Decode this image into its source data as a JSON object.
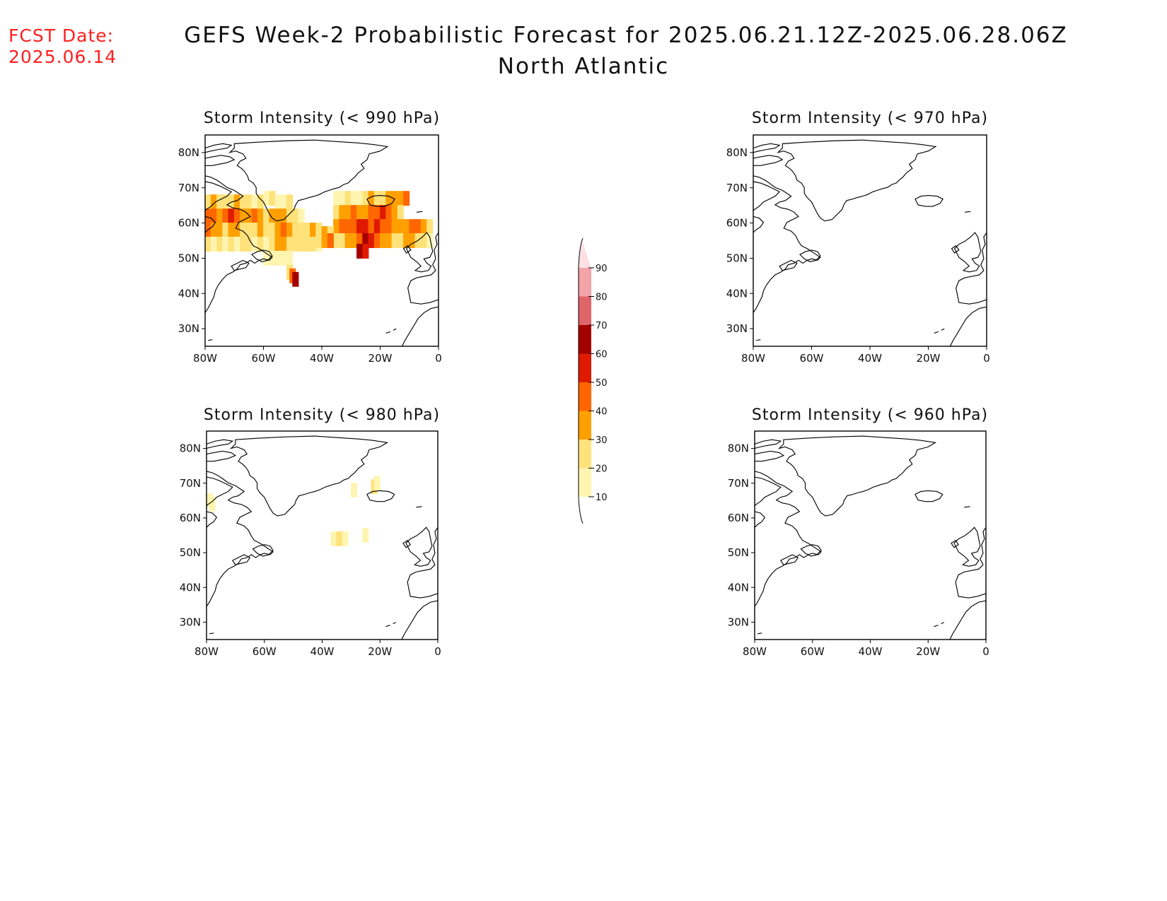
{
  "header": {
    "fcst_label": "FCST Date:",
    "fcst_date": "2025.06.14",
    "title": "GEFS Week-2 Probabilistic Forecast for 2025.06.21.12Z-2025.06.28.06Z",
    "subtitle": "North Atlantic"
  },
  "axes": {
    "lon_ticks": [
      "80W",
      "60W",
      "40W",
      "20W",
      "0"
    ],
    "lat_ticks": [
      "80N",
      "70N",
      "60N",
      "50N",
      "40N",
      "30N"
    ]
  },
  "panels": [
    {
      "title": "Storm Intensity (< 990 hPa)"
    },
    {
      "title": "Storm Intensity (< 970 hPa)"
    },
    {
      "title": "Storm Intensity (< 980 hPa)"
    },
    {
      "title": "Storm Intensity (< 960 hPa)"
    }
  ],
  "colorbar": {
    "labels": [
      "90",
      "80",
      "70",
      "60",
      "50",
      "40",
      "30",
      "20",
      "10"
    ],
    "colors": [
      "#fde0e4",
      "#f4a4a8",
      "#e0656a",
      "#a50000",
      "#e01a00",
      "#ff6600",
      "#ffa000",
      "#ffe27a",
      "#fff5b0"
    ]
  },
  "chart_data": [
    {
      "type": "heatmap",
      "title": "Storm Intensity (< 990 hPa)",
      "xlim": [
        -80,
        0
      ],
      "ylim": [
        25,
        85
      ],
      "units": "probability (%)",
      "cells": [
        [
          -79,
          66,
          20
        ],
        [
          -77,
          66,
          30
        ],
        [
          -75,
          66,
          20
        ],
        [
          -73,
          66,
          20
        ],
        [
          -71,
          66,
          20
        ],
        [
          -69,
          66,
          30
        ],
        [
          -67,
          66,
          20
        ],
        [
          -65,
          66,
          20
        ],
        [
          -63,
          66,
          10
        ],
        [
          -61,
          66,
          20
        ],
        [
          -59,
          67,
          10
        ],
        [
          -57,
          67,
          20
        ],
        [
          -55,
          66,
          10
        ],
        [
          -53,
          66,
          10
        ],
        [
          -51,
          66,
          20
        ],
        [
          -79,
          62,
          40
        ],
        [
          -77,
          62,
          40
        ],
        [
          -75,
          62,
          30
        ],
        [
          -73,
          62,
          40
        ],
        [
          -71,
          62,
          50
        ],
        [
          -69,
          62,
          40
        ],
        [
          -67,
          62,
          30
        ],
        [
          -65,
          62,
          30
        ],
        [
          -63,
          62,
          40
        ],
        [
          -61,
          62,
          30
        ],
        [
          -59,
          62,
          20
        ],
        [
          -57,
          62,
          30
        ],
        [
          -55,
          62,
          30
        ],
        [
          -53,
          62,
          30
        ],
        [
          -51,
          62,
          20
        ],
        [
          -49,
          62,
          20
        ],
        [
          -47,
          62,
          10
        ],
        [
          -79,
          58,
          40
        ],
        [
          -77,
          58,
          30
        ],
        [
          -75,
          58,
          30
        ],
        [
          -73,
          58,
          20
        ],
        [
          -71,
          58,
          30
        ],
        [
          -69,
          58,
          30
        ],
        [
          -67,
          58,
          20
        ],
        [
          -65,
          58,
          20
        ],
        [
          -63,
          58,
          20
        ],
        [
          -61,
          58,
          30
        ],
        [
          -59,
          58,
          20
        ],
        [
          -57,
          58,
          20
        ],
        [
          -55,
          58,
          30
        ],
        [
          -53,
          58,
          40
        ],
        [
          -51,
          58,
          30
        ],
        [
          -49,
          58,
          20
        ],
        [
          -47,
          58,
          20
        ],
        [
          -45,
          58,
          20
        ],
        [
          -43,
          58,
          30
        ],
        [
          -41,
          58,
          20
        ],
        [
          -79,
          54,
          20
        ],
        [
          -77,
          54,
          10
        ],
        [
          -75,
          54,
          20
        ],
        [
          -73,
          54,
          10
        ],
        [
          -71,
          54,
          20
        ],
        [
          -69,
          54,
          10
        ],
        [
          -67,
          54,
          20
        ],
        [
          -65,
          54,
          20
        ],
        [
          -63,
          54,
          10
        ],
        [
          -61,
          54,
          20
        ],
        [
          -59,
          54,
          10
        ],
        [
          -57,
          54,
          20
        ],
        [
          -55,
          54,
          30
        ],
        [
          -53,
          54,
          30
        ],
        [
          -51,
          54,
          20
        ],
        [
          -49,
          54,
          20
        ],
        [
          -47,
          54,
          20
        ],
        [
          -45,
          54,
          20
        ],
        [
          -43,
          54,
          20
        ],
        [
          -41,
          54,
          10
        ],
        [
          -59,
          50,
          10
        ],
        [
          -57,
          50,
          10
        ],
        [
          -55,
          50,
          10
        ],
        [
          -53,
          50,
          10
        ],
        [
          -51,
          50,
          10
        ],
        [
          -51,
          46,
          20
        ],
        [
          -50,
          45,
          40
        ],
        [
          -49,
          44,
          60
        ],
        [
          -35,
          67,
          10
        ],
        [
          -33,
          67,
          10
        ],
        [
          -31,
          67,
          20
        ],
        [
          -29,
          67,
          10
        ],
        [
          -27,
          67,
          10
        ],
        [
          -25,
          67,
          20
        ],
        [
          -23,
          67,
          30
        ],
        [
          -21,
          67,
          20
        ],
        [
          -19,
          67,
          20
        ],
        [
          -17,
          67,
          30
        ],
        [
          -15,
          67,
          30
        ],
        [
          -13,
          67,
          30
        ],
        [
          -11,
          67,
          40
        ],
        [
          -35,
          63,
          20
        ],
        [
          -33,
          63,
          30
        ],
        [
          -31,
          63,
          30
        ],
        [
          -29,
          63,
          40
        ],
        [
          -27,
          63,
          30
        ],
        [
          -25,
          63,
          30
        ],
        [
          -23,
          63,
          40
        ],
        [
          -21,
          63,
          40
        ],
        [
          -19,
          63,
          50
        ],
        [
          -17,
          63,
          40
        ],
        [
          -15,
          63,
          30
        ],
        [
          -13,
          63,
          20
        ],
        [
          -35,
          59,
          30
        ],
        [
          -33,
          59,
          40
        ],
        [
          -31,
          59,
          40
        ],
        [
          -29,
          59,
          40
        ],
        [
          -27,
          59,
          50
        ],
        [
          -25,
          59,
          50
        ],
        [
          -23,
          59,
          40
        ],
        [
          -21,
          59,
          50
        ],
        [
          -19,
          59,
          40
        ],
        [
          -17,
          59,
          40
        ],
        [
          -15,
          59,
          30
        ],
        [
          -13,
          59,
          30
        ],
        [
          -11,
          59,
          30
        ],
        [
          -9,
          59,
          40
        ],
        [
          -7,
          59,
          40
        ],
        [
          -5,
          59,
          30
        ],
        [
          -3,
          59,
          20
        ],
        [
          -35,
          55,
          20
        ],
        [
          -33,
          55,
          20
        ],
        [
          -31,
          55,
          30
        ],
        [
          -29,
          55,
          30
        ],
        [
          -27,
          55,
          40
        ],
        [
          -25,
          55,
          60
        ],
        [
          -23,
          55,
          50
        ],
        [
          -21,
          55,
          40
        ],
        [
          -19,
          55,
          30
        ],
        [
          -17,
          55,
          30
        ],
        [
          -15,
          55,
          20
        ],
        [
          -13,
          55,
          20
        ],
        [
          -11,
          55,
          30
        ],
        [
          -9,
          55,
          30
        ],
        [
          -7,
          55,
          20
        ],
        [
          -5,
          55,
          20
        ],
        [
          -3,
          55,
          10
        ],
        [
          -39,
          57,
          30
        ],
        [
          -37,
          57,
          20
        ],
        [
          -41,
          55,
          20
        ],
        [
          -39,
          55,
          30
        ],
        [
          -37,
          55,
          40
        ],
        [
          -27,
          52,
          60
        ],
        [
          -25,
          52,
          50
        ]
      ]
    },
    {
      "type": "heatmap",
      "title": "Storm Intensity (< 970 hPa)",
      "xlim": [
        -80,
        0
      ],
      "ylim": [
        25,
        85
      ],
      "units": "probability (%)",
      "cells": []
    },
    {
      "type": "heatmap",
      "title": "Storm Intensity (< 980 hPa)",
      "xlim": [
        -80,
        0
      ],
      "ylim": [
        25,
        85
      ],
      "units": "probability (%)",
      "cells": [
        [
          -79,
          65,
          10
        ],
        [
          -78,
          64,
          10
        ],
        [
          -29,
          68,
          10
        ],
        [
          -22,
          69,
          20
        ],
        [
          -21,
          70,
          10
        ],
        [
          -36,
          54,
          10
        ],
        [
          -34,
          54,
          20
        ],
        [
          -32,
          54,
          10
        ],
        [
          -25,
          55,
          10
        ]
      ]
    },
    {
      "type": "heatmap",
      "title": "Storm Intensity (< 960 hPa)",
      "xlim": [
        -80,
        0
      ],
      "ylim": [
        25,
        85
      ],
      "units": "probability (%)",
      "cells": []
    }
  ]
}
